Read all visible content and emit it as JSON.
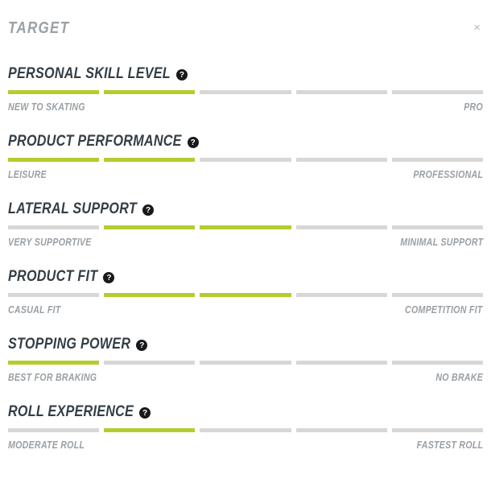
{
  "panel": {
    "title": "TARGET"
  },
  "icons": {
    "close": "×",
    "help": "?"
  },
  "colors": {
    "accent": "#b5cc2f",
    "track": "#d7d7d5",
    "heading": "#333e46",
    "muted": "#9aa0a5",
    "close": "#b7babd"
  },
  "rating_scale_max": 5,
  "sections": [
    {
      "name": "PERSONAL SKILL LEVEL",
      "left_label": "NEW TO SKATING",
      "right_label": "PRO",
      "segments": [
        1,
        1,
        0,
        0,
        0
      ]
    },
    {
      "name": "PRODUCT PERFORMANCE",
      "left_label": "LEISURE",
      "right_label": "PROFESSIONAL",
      "segments": [
        1,
        1,
        0,
        0,
        0
      ]
    },
    {
      "name": "LATERAL SUPPORT",
      "left_label": "VERY SUPPORTIVE",
      "right_label": "MINIMAL SUPPORT",
      "segments": [
        0,
        1,
        1,
        0,
        0
      ]
    },
    {
      "name": "PRODUCT FIT",
      "left_label": "CASUAL FIT",
      "right_label": "COMPETITION FIT",
      "segments": [
        0,
        1,
        1,
        0,
        0
      ]
    },
    {
      "name": "STOPPING POWER",
      "left_label": "BEST FOR BRAKING",
      "right_label": "NO BRAKE",
      "segments": [
        1,
        0,
        0,
        0,
        0
      ]
    },
    {
      "name": "ROLL EXPERIENCE",
      "left_label": "MODERATE ROLL",
      "right_label": "FASTEST ROLL",
      "segments": [
        0,
        1,
        0,
        0,
        0
      ]
    }
  ]
}
